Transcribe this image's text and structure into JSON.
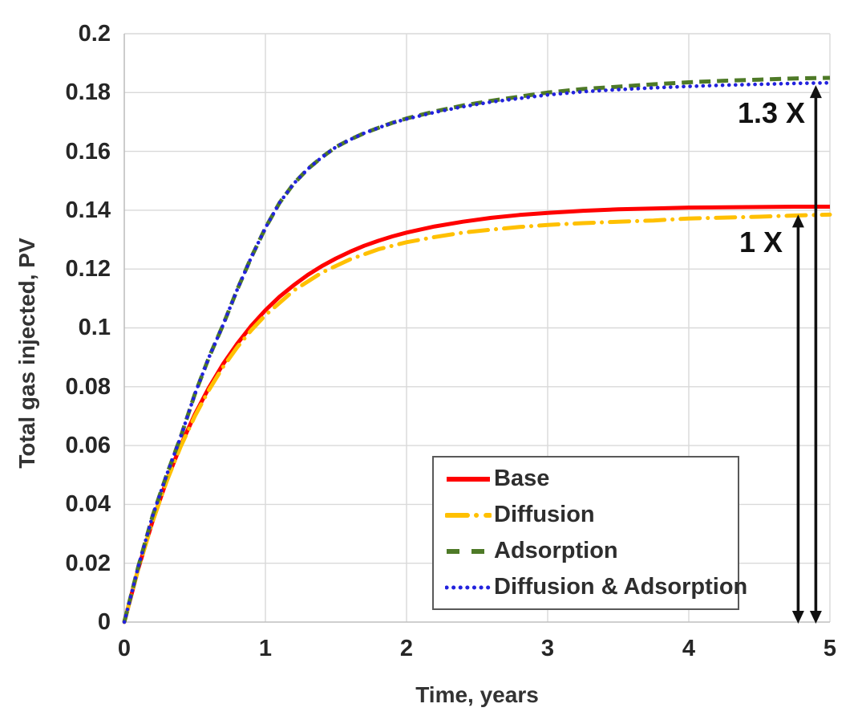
{
  "chart_data": {
    "type": "line",
    "title": "",
    "xlabel": "Time, years",
    "ylabel": "Total gas injected, PV",
    "xlim": [
      0,
      5
    ],
    "ylim": [
      0,
      0.2
    ],
    "grid": "on",
    "legend_position": "inside-bottom-right",
    "x_ticks": [
      0,
      1,
      2,
      3,
      4,
      5
    ],
    "x_tick_labels": [
      "0",
      "1",
      "2",
      "3",
      "4",
      "5"
    ],
    "y_ticks": [
      0,
      0.02,
      0.04,
      0.06,
      0.08,
      0.1,
      0.12,
      0.14,
      0.16,
      0.18,
      0.2
    ],
    "y_tick_labels_top_down": [
      "0.2",
      "0.18",
      "0.16",
      "0.14",
      "0.12",
      "0.1",
      "0.08",
      "0.06",
      "0.04",
      "0.02",
      "0"
    ],
    "series": [
      {
        "name": "Base",
        "color": "#FF0000",
        "style": "solid",
        "points": [
          [
            0,
            0
          ],
          [
            0.1,
            0.0183
          ],
          [
            0.2,
            0.0342
          ],
          [
            0.3,
            0.0481
          ],
          [
            0.4,
            0.0601
          ],
          [
            0.5,
            0.0706
          ],
          [
            0.6,
            0.0797
          ],
          [
            0.7,
            0.0877
          ],
          [
            0.8,
            0.0946
          ],
          [
            0.9,
            0.1007
          ],
          [
            1.0,
            0.106
          ],
          [
            1.1,
            0.1106
          ],
          [
            1.2,
            0.1145
          ],
          [
            1.3,
            0.118
          ],
          [
            1.4,
            0.121
          ],
          [
            1.5,
            0.1236
          ],
          [
            1.6,
            0.1259
          ],
          [
            1.7,
            0.1279
          ],
          [
            1.8,
            0.1296
          ],
          [
            1.9,
            0.1311
          ],
          [
            2.0,
            0.1324
          ],
          [
            2.2,
            0.1345
          ],
          [
            2.4,
            0.1361
          ],
          [
            2.6,
            0.1374
          ],
          [
            2.8,
            0.1384
          ],
          [
            3.0,
            0.1391
          ],
          [
            3.25,
            0.1398
          ],
          [
            3.5,
            0.1403
          ],
          [
            3.75,
            0.1406
          ],
          [
            4.0,
            0.1409
          ],
          [
            4.25,
            0.141
          ],
          [
            4.5,
            0.1411
          ],
          [
            4.75,
            0.1412
          ],
          [
            5.0,
            0.1412
          ]
        ]
      },
      {
        "name": "Diffusion",
        "color": "#FFC000",
        "style": "long-dash-dot",
        "points": [
          [
            0,
            0
          ],
          [
            0.1,
            0.0183
          ],
          [
            0.2,
            0.0341
          ],
          [
            0.3,
            0.0478
          ],
          [
            0.4,
            0.0597
          ],
          [
            0.5,
            0.07
          ],
          [
            0.6,
            0.0789
          ],
          [
            0.7,
            0.0867
          ],
          [
            0.8,
            0.0934
          ],
          [
            0.9,
            0.0992
          ],
          [
            1.0,
            0.1043
          ],
          [
            1.2,
            0.1127
          ],
          [
            1.4,
            0.1188
          ],
          [
            1.6,
            0.1233
          ],
          [
            1.8,
            0.1267
          ],
          [
            2.0,
            0.1291
          ],
          [
            2.2,
            0.1309
          ],
          [
            2.4,
            0.1324
          ],
          [
            2.6,
            0.1334
          ],
          [
            2.8,
            0.1343
          ],
          [
            3.0,
            0.135
          ],
          [
            3.25,
            0.1356
          ],
          [
            3.5,
            0.1361
          ],
          [
            3.75,
            0.1365
          ],
          [
            4.0,
            0.1372
          ],
          [
            4.25,
            0.1375
          ],
          [
            4.5,
            0.1378
          ],
          [
            4.75,
            0.1382
          ],
          [
            5.0,
            0.1385
          ]
        ]
      },
      {
        "name": "Adsorption",
        "color": "#4E7A27",
        "style": "dashed",
        "points": [
          [
            0,
            0
          ],
          [
            0.1,
            0.019
          ],
          [
            0.2,
            0.036
          ],
          [
            0.3,
            0.05
          ],
          [
            0.4,
            0.063
          ],
          [
            0.5,
            0.0775
          ],
          [
            0.6,
            0.09
          ],
          [
            0.7,
            0.101
          ],
          [
            0.8,
            0.113
          ],
          [
            0.9,
            0.124
          ],
          [
            1.0,
            0.134
          ],
          [
            1.1,
            0.1425
          ],
          [
            1.2,
            0.149
          ],
          [
            1.3,
            0.154
          ],
          [
            1.4,
            0.158
          ],
          [
            1.5,
            0.1615
          ],
          [
            1.6,
            0.164
          ],
          [
            1.7,
            0.1662
          ],
          [
            1.8,
            0.168
          ],
          [
            1.9,
            0.1697
          ],
          [
            2.0,
            0.1712
          ],
          [
            2.2,
            0.1736
          ],
          [
            2.4,
            0.1756
          ],
          [
            2.6,
            0.1772
          ],
          [
            2.8,
            0.1786
          ],
          [
            3.0,
            0.18
          ],
          [
            3.25,
            0.1812
          ],
          [
            3.5,
            0.182
          ],
          [
            3.75,
            0.1828
          ],
          [
            4.0,
            0.1835
          ],
          [
            4.25,
            0.184
          ],
          [
            4.5,
            0.1844
          ],
          [
            4.75,
            0.1848
          ],
          [
            5.0,
            0.185
          ]
        ]
      },
      {
        "name": "Diffusion & Adsorption",
        "color": "#2222DD",
        "style": "dotted",
        "points": [
          [
            0,
            0
          ],
          [
            0.1,
            0.019
          ],
          [
            0.2,
            0.036
          ],
          [
            0.3,
            0.05
          ],
          [
            0.4,
            0.063
          ],
          [
            0.5,
            0.0775
          ],
          [
            0.6,
            0.09
          ],
          [
            0.7,
            0.101
          ],
          [
            0.8,
            0.113
          ],
          [
            0.9,
            0.124
          ],
          [
            1.0,
            0.134
          ],
          [
            1.1,
            0.1425
          ],
          [
            1.2,
            0.149
          ],
          [
            1.3,
            0.154
          ],
          [
            1.4,
            0.158
          ],
          [
            1.5,
            0.1615
          ],
          [
            1.6,
            0.164
          ],
          [
            1.7,
            0.1662
          ],
          [
            1.8,
            0.168
          ],
          [
            1.9,
            0.1697
          ],
          [
            2.0,
            0.171
          ],
          [
            2.2,
            0.1733
          ],
          [
            2.4,
            0.1752
          ],
          [
            2.6,
            0.1768
          ],
          [
            2.8,
            0.178
          ],
          [
            3.0,
            0.1792
          ],
          [
            3.25,
            0.1803
          ],
          [
            3.5,
            0.181
          ],
          [
            3.75,
            0.1816
          ],
          [
            4.0,
            0.1821
          ],
          [
            4.25,
            0.1825
          ],
          [
            4.5,
            0.1828
          ],
          [
            4.75,
            0.1831
          ],
          [
            5.0,
            0.1833
          ]
        ]
      }
    ],
    "annotations": [
      {
        "label": "1.3 X",
        "arrow_x": 4.9,
        "arrow_y_from": 0,
        "arrow_y_to": 0.1825
      },
      {
        "label": "1 X",
        "arrow_x": 4.775,
        "arrow_y_from": 0,
        "arrow_y_to": 0.1385
      }
    ],
    "colors": {
      "gridline": "#D9D9D9",
      "axis_line": "#BFBFBF",
      "legend_border": "#595959",
      "arrow": "#111111",
      "tick_text": "#262626"
    }
  }
}
